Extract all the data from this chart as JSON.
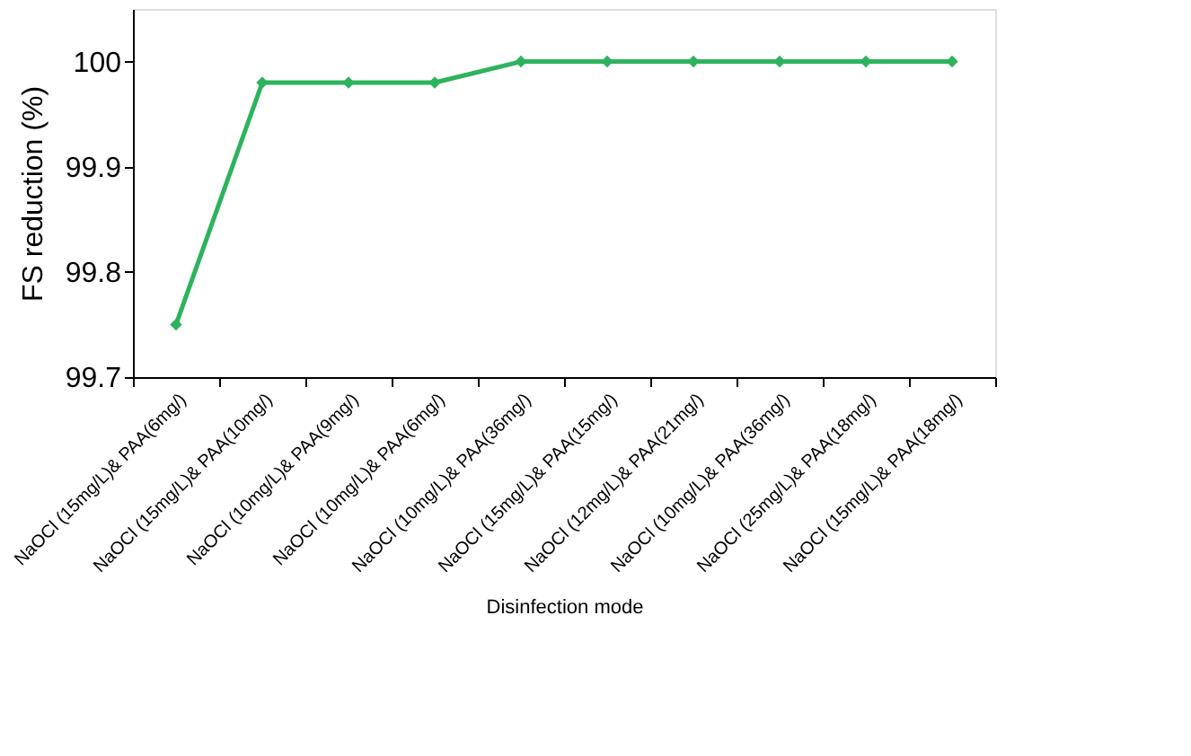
{
  "chart_data": {
    "type": "line",
    "xlabel": "Disinfection mode",
    "ylabel": "FS reduction (%)",
    "categories": [
      "NaOCl (15mg/L)& PAA(6mg/)",
      "NaOCl (15mg/L)& PAA(10mg/)",
      "NaOCl (10mg/L)& PAA(9mg/)",
      "NaOCl (10mg/L)& PAA(6mg/)",
      "NaOCl (10mg/L)& PAA(36mg/)",
      "NaOCl (15mg/L)& PAA(15mg/)",
      "NaOCl (12mg/L)& PAA(21mg/)",
      "NaOCl (10mg/L)& PAA(36mg/)",
      "NaOCl (25mg/L)& PAA(18mg/)",
      "NaOCl (15mg/L)& PAA(18mg/)"
    ],
    "series": [
      {
        "color": "#2db35d",
        "values": [
          99.75,
          99.98,
          99.98,
          99.98,
          100,
          100,
          100,
          100,
          100,
          100
        ]
      }
    ],
    "ylim": [
      99.7,
      100.05
    ],
    "yticks": [
      99.7,
      99.8,
      99.9,
      {
        "value": 100,
        "label": "100"
      }
    ],
    "grid": false,
    "marker": "diamond",
    "line_style": "solid"
  }
}
